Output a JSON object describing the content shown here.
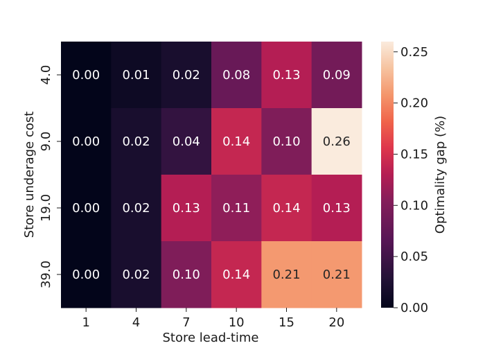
{
  "chart_data": {
    "type": "heatmap",
    "xlabel": "Store lead-time",
    "ylabel": "Store underage cost",
    "x_categories": [
      "1",
      "4",
      "7",
      "10",
      "15",
      "20"
    ],
    "y_categories": [
      "4.0",
      "9.0",
      "19.0",
      "39.0"
    ],
    "values": [
      [
        0.0,
        0.01,
        0.02,
        0.08,
        0.13,
        0.09
      ],
      [
        0.0,
        0.02,
        0.04,
        0.14,
        0.1,
        0.26
      ],
      [
        0.0,
        0.02,
        0.13,
        0.11,
        0.14,
        0.13
      ],
      [
        0.0,
        0.02,
        0.1,
        0.14,
        0.21,
        0.21
      ]
    ],
    "cell_labels": [
      [
        "0.00",
        "0.01",
        "0.02",
        "0.08",
        "0.13",
        "0.09"
      ],
      [
        "0.00",
        "0.02",
        "0.04",
        "0.14",
        "0.10",
        "0.26"
      ],
      [
        "0.00",
        "0.02",
        "0.13",
        "0.11",
        "0.14",
        "0.13"
      ],
      [
        "0.00",
        "0.02",
        "0.10",
        "0.14",
        "0.21",
        "0.21"
      ]
    ],
    "colorbar": {
      "label": "Optimality gap (%)",
      "range": [
        0,
        0.26
      ],
      "ticks": [
        0.0,
        0.05,
        0.1,
        0.15,
        0.2,
        0.25
      ],
      "tick_labels": [
        "0.00",
        "0.05",
        "0.10",
        "0.15",
        "0.20",
        "0.25"
      ],
      "colormap": "rocket"
    },
    "grid": false
  }
}
